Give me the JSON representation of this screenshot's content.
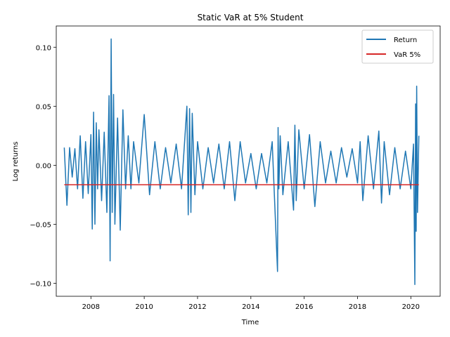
{
  "colors": {
    "return": "#1f77b4",
    "var": "#d62728"
  },
  "chart_data": {
    "type": "line",
    "title": "Static VaR at 5% Student",
    "xlabel": "Time",
    "ylabel": "Log returns",
    "x_unit": "year",
    "xlim": [
      2006.7,
      2021.1
    ],
    "ylim": [
      -0.111,
      0.118
    ],
    "x_ticks": [
      2008,
      2010,
      2012,
      2014,
      2016,
      2018,
      2020
    ],
    "x_tick_labels": [
      "2008",
      "2010",
      "2012",
      "2014",
      "2016",
      "2018",
      "2020"
    ],
    "y_ticks": [
      -0.1,
      -0.05,
      0.0,
      0.05,
      0.1
    ],
    "y_tick_labels": [
      "−0.10",
      "−0.05",
      "0.00",
      "0.05",
      "0.10"
    ],
    "legend": {
      "location": "top-right",
      "entries": [
        "Return",
        "VaR 5%"
      ]
    },
    "grid": false,
    "series": [
      {
        "name": "Return",
        "x": [
          2007.0,
          2007.1,
          2007.2,
          2007.3,
          2007.4,
          2007.5,
          2007.6,
          2007.7,
          2007.8,
          2007.9,
          2008.0,
          2008.05,
          2008.1,
          2008.15,
          2008.2,
          2008.25,
          2008.3,
          2008.4,
          2008.5,
          2008.6,
          2008.68,
          2008.72,
          2008.76,
          2008.8,
          2008.85,
          2008.9,
          2009.0,
          2009.1,
          2009.2,
          2009.3,
          2009.4,
          2009.5,
          2009.6,
          2009.8,
          2010.0,
          2010.2,
          2010.4,
          2010.6,
          2010.8,
          2011.0,
          2011.2,
          2011.4,
          2011.6,
          2011.65,
          2011.7,
          2011.75,
          2011.8,
          2011.9,
          2012.0,
          2012.2,
          2012.4,
          2012.6,
          2012.8,
          2013.0,
          2013.2,
          2013.4,
          2013.6,
          2013.8,
          2014.0,
          2014.2,
          2014.4,
          2014.6,
          2014.8,
          2015.0,
          2015.02,
          2015.05,
          2015.1,
          2015.2,
          2015.4,
          2015.6,
          2015.65,
          2015.7,
          2015.8,
          2016.0,
          2016.2,
          2016.4,
          2016.6,
          2016.8,
          2017.0,
          2017.2,
          2017.4,
          2017.6,
          2017.8,
          2018.0,
          2018.1,
          2018.2,
          2018.4,
          2018.6,
          2018.8,
          2018.9,
          2019.0,
          2019.2,
          2019.4,
          2019.6,
          2019.8,
          2020.0,
          2020.1,
          2020.15,
          2020.18,
          2020.2,
          2020.22,
          2020.25,
          2020.3
        ],
        "y": [
          0.015,
          -0.034,
          0.015,
          -0.01,
          0.014,
          -0.02,
          0.025,
          -0.028,
          0.02,
          -0.024,
          0.026,
          -0.054,
          0.045,
          -0.05,
          0.036,
          -0.02,
          0.03,
          -0.03,
          0.028,
          -0.04,
          0.059,
          -0.081,
          0.107,
          -0.04,
          0.06,
          -0.05,
          0.04,
          -0.055,
          0.047,
          -0.02,
          0.025,
          -0.02,
          0.02,
          -0.015,
          0.043,
          -0.025,
          0.02,
          -0.02,
          0.015,
          -0.015,
          0.018,
          -0.02,
          0.05,
          -0.042,
          0.048,
          -0.04,
          0.044,
          -0.025,
          0.02,
          -0.02,
          0.015,
          -0.015,
          0.018,
          -0.02,
          0.02,
          -0.03,
          0.02,
          -0.015,
          0.01,
          -0.02,
          0.01,
          -0.015,
          0.02,
          -0.09,
          0.032,
          -0.02,
          0.025,
          -0.025,
          0.02,
          -0.038,
          0.034,
          -0.03,
          0.03,
          -0.02,
          0.026,
          -0.035,
          0.02,
          -0.015,
          0.012,
          -0.015,
          0.015,
          -0.01,
          0.014,
          -0.015,
          0.02,
          -0.03,
          0.025,
          -0.02,
          0.029,
          -0.032,
          0.02,
          -0.025,
          0.015,
          -0.02,
          0.012,
          -0.02,
          0.018,
          -0.101,
          0.052,
          -0.056,
          0.067,
          -0.04,
          0.025
        ]
      },
      {
        "name": "VaR 5%",
        "x": [
          2007.0,
          2020.3
        ],
        "y": [
          -0.0165,
          -0.0165
        ]
      }
    ]
  }
}
